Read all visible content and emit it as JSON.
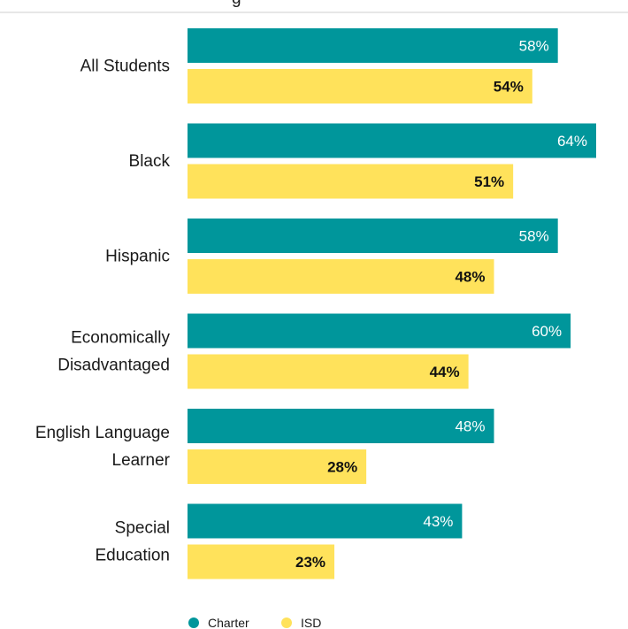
{
  "chart_data": {
    "type": "bar",
    "orientation": "horizontal",
    "title_fragment": "g",
    "categories": [
      "All Students",
      "Black",
      "Hispanic",
      "Economically Disadvantaged",
      "English Language Learner",
      "Special Education"
    ],
    "category_lines": [
      [
        "All Students"
      ],
      [
        "Black"
      ],
      [
        "Hispanic"
      ],
      [
        "Economically",
        "Disadvantaged"
      ],
      [
        "English Language",
        "Learner"
      ],
      [
        "Special",
        "Education"
      ]
    ],
    "series": [
      {
        "name": "Charter",
        "values": [
          58,
          64,
          58,
          60,
          48,
          43
        ],
        "color": "#00969b"
      },
      {
        "name": "ISD",
        "values": [
          54,
          51,
          48,
          44,
          28,
          23
        ],
        "color": "#ffe25b"
      }
    ],
    "value_suffix": "%",
    "xlim": [
      0,
      64
    ],
    "grid": false,
    "legend_position": "bottom"
  }
}
